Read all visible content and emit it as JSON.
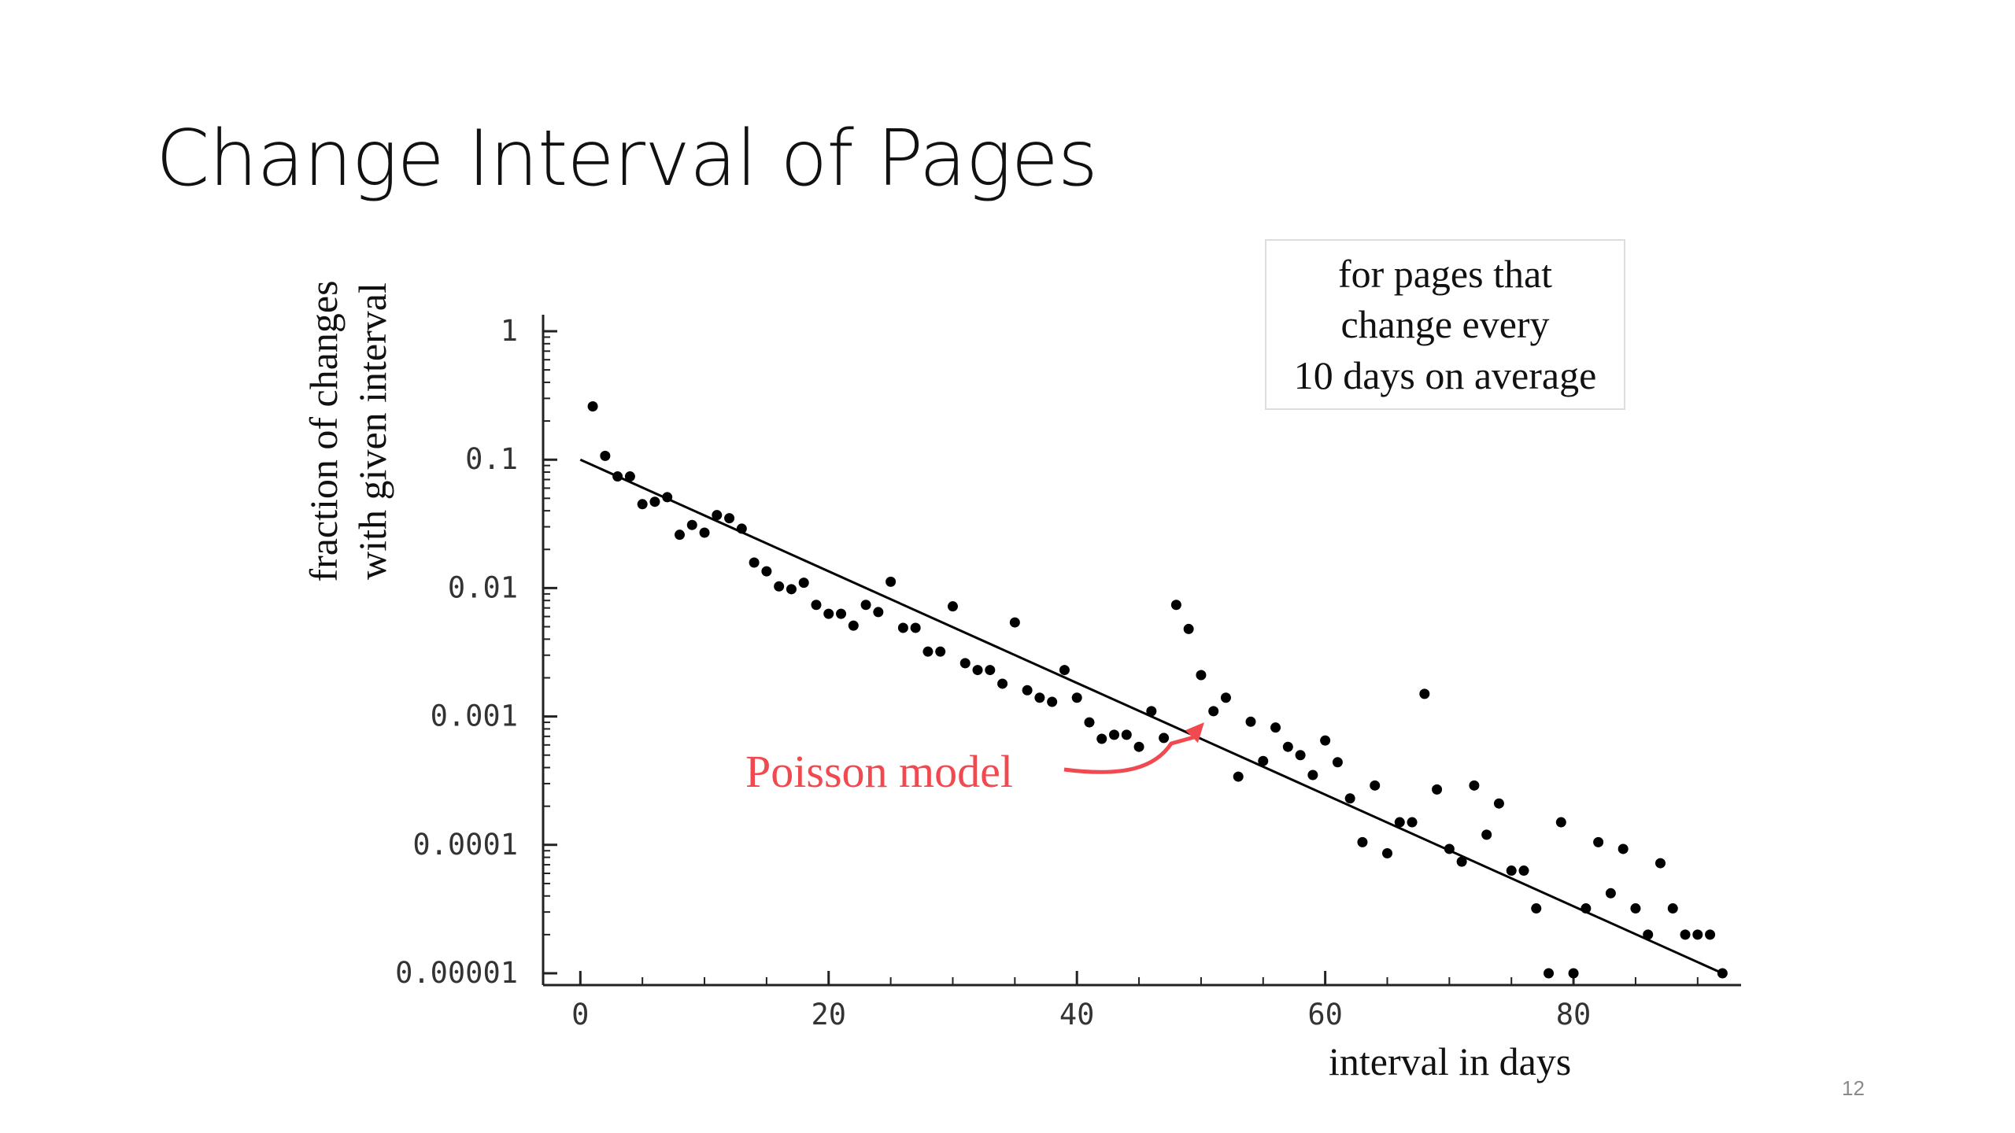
{
  "slide": {
    "title": "Change Interval of Pages",
    "page_number": "12"
  },
  "colors": {
    "points": "#000000",
    "model_line": "#000000",
    "callout": "#f04a50"
  },
  "chart_data": {
    "type": "scatter",
    "title": "",
    "xlabel": "interval in days",
    "ylabel_lines": [
      "fraction of changes",
      "with given interval"
    ],
    "x_scale": "linear",
    "y_scale": "log",
    "xlim": [
      -3,
      93.5
    ],
    "ylim": [
      1e-05,
      1
    ],
    "x_ticks": [
      0,
      20,
      40,
      60,
      80
    ],
    "x_tick_labels": [
      "0",
      "20",
      "40",
      "60",
      "80"
    ],
    "y_ticks": [
      1,
      0.1,
      0.01,
      0.001,
      0.0001,
      1e-05
    ],
    "y_tick_labels": [
      "1",
      "0.1",
      "0.01",
      "0.001",
      "0.0001",
      "0.00001"
    ],
    "grid": false,
    "legend": "none",
    "annotation_box": {
      "lines": [
        "for pages that",
        "change every",
        "10 days on average"
      ],
      "placement": "top-right"
    },
    "callout": {
      "text": "Poisson model",
      "points_to": [
        50,
        0.00085
      ]
    },
    "series": [
      {
        "kind": "points",
        "x": [
          1,
          2,
          3,
          4,
          5,
          6,
          7,
          8,
          9,
          10,
          11,
          12,
          13,
          14,
          15,
          16,
          17,
          18,
          19,
          20,
          21,
          22,
          23,
          24,
          25,
          26,
          27,
          28,
          29,
          30,
          31,
          32,
          33,
          34,
          35,
          36,
          37,
          38,
          39,
          40,
          41,
          42,
          43,
          44,
          45,
          46,
          47,
          48,
          49,
          50,
          51,
          52,
          53,
          54,
          55,
          56,
          57,
          58,
          59,
          60,
          61,
          62,
          63,
          64,
          65,
          66,
          67,
          68,
          69,
          70,
          71,
          72,
          73,
          74,
          75,
          76,
          77,
          78,
          79,
          80,
          81,
          82,
          83,
          84,
          85,
          86,
          87,
          88,
          89,
          90,
          91,
          92
        ],
        "y": [
          0.26,
          0.107,
          0.074,
          0.074,
          0.045,
          0.047,
          0.051,
          0.026,
          0.031,
          0.027,
          0.037,
          0.035,
          0.029,
          0.0158,
          0.0135,
          0.0103,
          0.0098,
          0.011,
          0.0074,
          0.0063,
          0.0063,
          0.0051,
          0.0074,
          0.0065,
          0.0112,
          0.0049,
          0.0049,
          0.0032,
          0.0032,
          0.0072,
          0.0026,
          0.0023,
          0.0023,
          0.0018,
          0.0054,
          0.0016,
          0.0014,
          0.0013,
          0.0023,
          0.0014,
          0.0009,
          0.00067,
          0.00072,
          0.00072,
          0.00058,
          0.0011,
          0.00068,
          0.0074,
          0.0048,
          0.0021,
          0.0011,
          0.0014,
          0.00034,
          0.00091,
          0.00045,
          0.00082,
          0.00058,
          0.0005,
          0.00035,
          0.00065,
          0.00044,
          0.00023,
          0.000105,
          0.00029,
          8.6e-05,
          0.00015,
          0.00015,
          0.0015,
          0.00027,
          9.3e-05,
          7.4e-05,
          0.00029,
          0.00012,
          0.00021,
          6.3e-05,
          6.3e-05,
          3.2e-05,
          1e-05,
          0.00015,
          1e-05,
          3.2e-05,
          0.000105,
          4.2e-05,
          9.3e-05,
          3.2e-05,
          2e-05,
          7.2e-05,
          3.2e-05,
          2e-05,
          2e-05,
          2e-05,
          1e-05
        ]
      },
      {
        "kind": "line",
        "x": [
          0,
          92
        ],
        "y": [
          0.1,
          1e-05
        ]
      }
    ]
  }
}
